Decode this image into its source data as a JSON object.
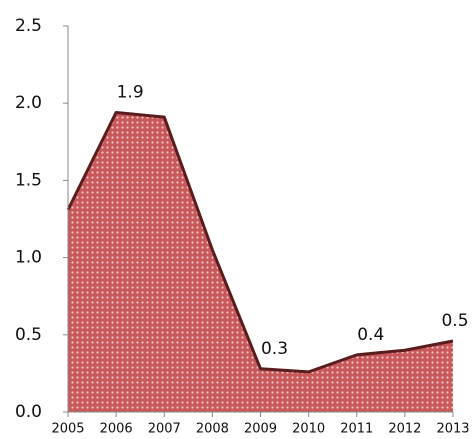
{
  "chart_data": {
    "type": "area",
    "categories": [
      "2005",
      "2006",
      "2007",
      "2008",
      "2009",
      "2010",
      "2011",
      "2012",
      "2013"
    ],
    "values": [
      1.31,
      1.94,
      1.91,
      1.05,
      0.28,
      0.26,
      0.37,
      0.4,
      0.46
    ],
    "value_labels": [
      null,
      "1.9",
      null,
      null,
      "0.3",
      null,
      "0.4",
      null,
      "0.5"
    ],
    "color": "#c9585a",
    "line_color": "#5a1c1c",
    "ylim": [
      0,
      2.5
    ],
    "yticks": [
      {
        "value": 0,
        "label": "0.0"
      },
      0.5,
      {
        "value": 1,
        "label": "1.0"
      },
      1.5,
      {
        "value": 2,
        "label": "2.0"
      },
      2.5
    ]
  }
}
